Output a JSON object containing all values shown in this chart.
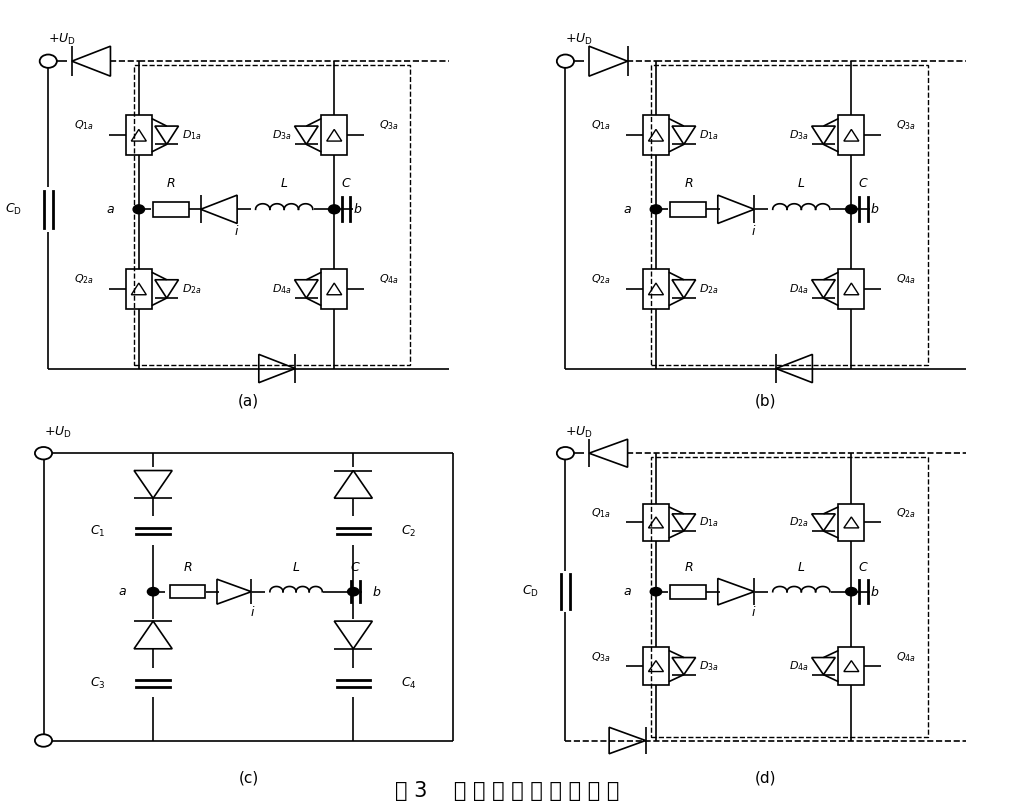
{
  "title": "图 3    工 作 过 程 等 效 结 构 图",
  "title_fontsize": 15,
  "subfig_labels": [
    "(a)",
    "(b)",
    "(c)",
    "(d)"
  ],
  "bg_color": "#ffffff",
  "line_color": "#000000",
  "dashed_color": "#000000"
}
